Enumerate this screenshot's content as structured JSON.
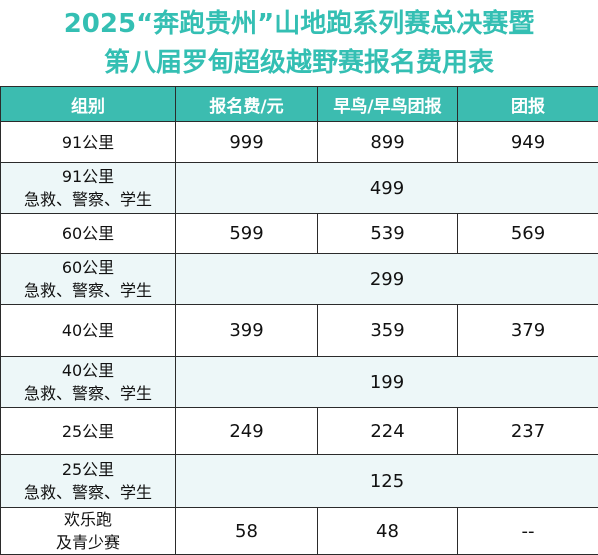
{
  "title": {
    "line1": "2025“奔跑贵州”山地跑系列赛总决赛暨",
    "line2": "第八届罗甸超级越野赛报名费用表"
  },
  "columns": {
    "group": "组别",
    "fee": "报名费/元",
    "early": "早鸟/早鸟团报",
    "team": "团报"
  },
  "rows": [
    {
      "group": "91公里",
      "fee": "999",
      "early": "899",
      "team": "949"
    },
    {
      "group": "91公里",
      "group_sub": "急救、警察、学生",
      "unified": "499"
    },
    {
      "group": "60公里",
      "fee": "599",
      "early": "539",
      "team": "569"
    },
    {
      "group": "60公里",
      "group_sub": "急救、警察、学生",
      "unified": "299"
    },
    {
      "group": "40公里",
      "fee": "399",
      "early": "359",
      "team": "379"
    },
    {
      "group": "40公里",
      "group_sub": "急救、警察、学生",
      "unified": "199"
    },
    {
      "group": "25公里",
      "fee": "249",
      "early": "224",
      "team": "237"
    },
    {
      "group": "25公里",
      "group_sub": "急救、警察、学生",
      "unified": "125"
    },
    {
      "group": "欢乐跑",
      "group_sub": "及青少赛",
      "fee": "58",
      "early": "48",
      "team": "--"
    }
  ],
  "colors": {
    "title": "#34bfb3",
    "header_bg": "#3cbcb0",
    "discount_row_bg": "#edf7f8"
  }
}
